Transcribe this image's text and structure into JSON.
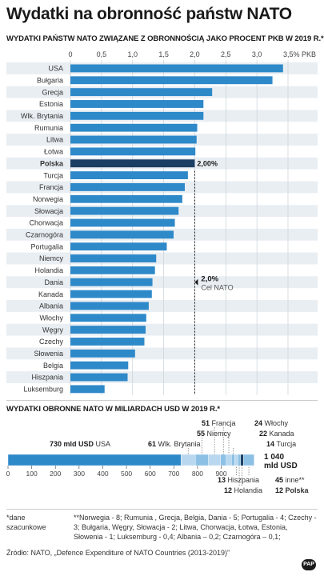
{
  "title": "Wydatki na obronność państw NATO",
  "chart_data": [
    {
      "type": "bar",
      "orientation": "horizontal",
      "title": "WYDATKI PAŃSTW NATO ZWIĄZANE Z OBRONNOŚCIĄ JAKO PROCENT PKB W 2019 R.*",
      "categories": [
        "USA",
        "Bułgaria",
        "Grecja",
        "Estonia",
        "Wlk. Brytania",
        "Rumunia",
        "Litwa",
        "Łotwa",
        "Polska",
        "Turcja",
        "Francja",
        "Norwegia",
        "Słowacja",
        "Chorwacja",
        "Czarnogóra",
        "Portugalia",
        "Niemcy",
        "Holandia",
        "Dania",
        "Kanada",
        "Albania",
        "Włochy",
        "Węgry",
        "Czechy",
        "Słowenia",
        "Belgia",
        "Hiszpania",
        "Luksemburg"
      ],
      "values": [
        3.42,
        3.25,
        2.28,
        2.14,
        2.14,
        2.04,
        2.03,
        2.01,
        2.0,
        1.89,
        1.84,
        1.8,
        1.74,
        1.68,
        1.66,
        1.55,
        1.38,
        1.36,
        1.32,
        1.31,
        1.26,
        1.22,
        1.21,
        1.19,
        1.04,
        0.93,
        0.92,
        0.55
      ],
      "highlight": "Polska",
      "highlight_label": "2,00%",
      "xlim": [
        0,
        3.5
      ],
      "ticks": [
        "0",
        "0,5",
        "1,0",
        "1,5",
        "2,0",
        "2,5",
        "3,0",
        "3,5% PKB"
      ],
      "reference_line": {
        "value": 2.0,
        "value_label": "2,0%",
        "label": "Cel NATO"
      },
      "colors": {
        "bar": "#2e89c9",
        "highlight": "#1b3e63",
        "stripe_even": "#e9eef3"
      }
    },
    {
      "type": "stacked_bar",
      "title": "WYDATKI OBRONNE NATO W MILIARDACH USD W 2019 R.*",
      "total_label": "1 040 mld USD",
      "xlim": [
        0,
        1040
      ],
      "ticks": [
        "0",
        "100",
        "200",
        "300",
        "400",
        "500",
        "600",
        "700",
        "800",
        "900"
      ],
      "segments": [
        {
          "name": "USA",
          "value": 730,
          "value_label": "730 mld USD",
          "color": "#2e89c9"
        },
        {
          "name": "Wlk. Brytania",
          "value": 61,
          "value_label": "61",
          "color": "#b9d8ef"
        },
        {
          "name": "Niemcy",
          "value": 55,
          "value_label": "55",
          "color": "#8cc0e5"
        },
        {
          "name": "Francja",
          "value": 51,
          "value_label": "51",
          "color": "#b9d8ef"
        },
        {
          "name": "Włochy",
          "value": 24,
          "value_label": "24",
          "color": "#8cc0e5"
        },
        {
          "name": "Kanada",
          "value": 22,
          "value_label": "22",
          "color": "#b9d8ef"
        },
        {
          "name": "Turcja",
          "value": 14,
          "value_label": "14",
          "color": "#8cc0e5"
        },
        {
          "name": "Hiszpania",
          "value": 13,
          "value_label": "13",
          "color": "#b9d8ef"
        },
        {
          "name": "Holandia",
          "value": 12,
          "value_label": "12",
          "color": "#8cc0e5"
        },
        {
          "name": "Polska",
          "value": 12,
          "value_label": "12",
          "color": "#1b3e63"
        },
        {
          "name": "inne**",
          "value": 45,
          "value_label": "45",
          "color": "#8cc0e5"
        }
      ]
    }
  ],
  "footnotes": {
    "star": "*dane szacunkowe",
    "double_star": "**Norwegia - 8; Rumunia , Grecja, Belgia, Dania - 5; Portugalia - 4; Czechy - 3; Bułgaria, Węgry, Słowacja - 2; Litwa, Chorwacja, Łotwa, Estonia, Słowenia - 1; Luksemburg - 0,4; Albania – 0,2; Czarnogóra – 0,1;"
  },
  "source": "Źródło: NATO, „Defence Expenditure of NATO Countries (2013-2019)”",
  "logo": "PAP"
}
